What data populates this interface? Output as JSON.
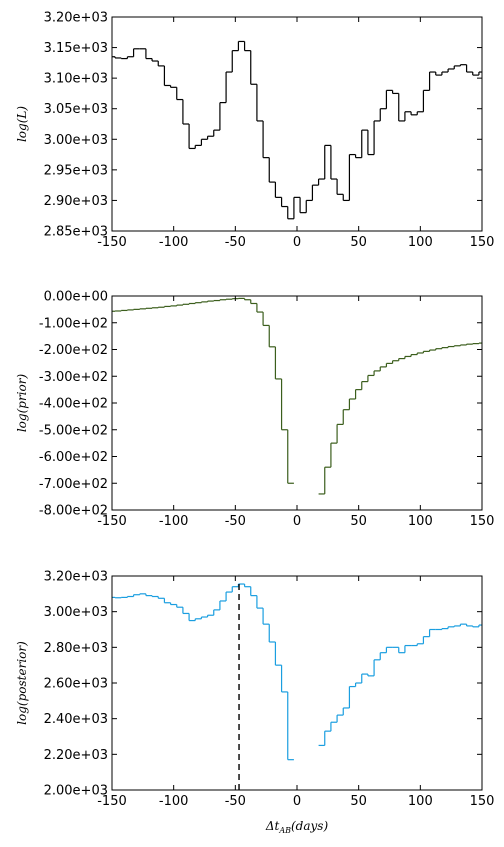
{
  "chart_data": [
    {
      "type": "line",
      "ylabel": "log(L)",
      "x": [
        -150,
        -145,
        -140,
        -135,
        -130,
        -125,
        -120,
        -115,
        -110,
        -105,
        -100,
        -95,
        -90,
        -85,
        -80,
        -75,
        -70,
        -65,
        -60,
        -55,
        -50,
        -45,
        -40,
        -35,
        -30,
        -25,
        -20,
        -15,
        -10,
        -5,
        0,
        5,
        10,
        15,
        20,
        25,
        30,
        35,
        40,
        45,
        50,
        55,
        60,
        65,
        70,
        75,
        80,
        85,
        90,
        95,
        100,
        105,
        110,
        115,
        120,
        125,
        130,
        135,
        140,
        145,
        150
      ],
      "series": [
        {
          "color": "#000000",
          "values": [
            3135,
            3133,
            3132,
            3135,
            3148,
            3148,
            3132,
            3128,
            3120,
            3088,
            3085,
            3065,
            3025,
            2985,
            2990,
            3000,
            3005,
            3015,
            3060,
            3110,
            3145,
            3160,
            3145,
            3090,
            3030,
            2970,
            2930,
            2905,
            2890,
            2870,
            2905,
            2880,
            2900,
            2925,
            2935,
            2990,
            2935,
            2910,
            2900,
            2975,
            2970,
            3015,
            2975,
            3030,
            3050,
            3080,
            3075,
            3030,
            3045,
            3040,
            3045,
            3080,
            3110,
            3105,
            3110,
            3115,
            3120,
            3122,
            3110,
            3105,
            3110
          ]
        }
      ],
      "xlim": [
        -150,
        150
      ],
      "xticks": [
        -150,
        -100,
        -50,
        0,
        50,
        100,
        150
      ],
      "ylim": [
        2850,
        3200
      ],
      "yticks": [
        {
          "value": 2850,
          "label": "2.85e+03"
        },
        {
          "value": 2900,
          "label": "2.90e+03"
        },
        {
          "value": 2950,
          "label": "2.95e+03"
        },
        {
          "value": 3000,
          "label": "3.00e+03"
        },
        {
          "value": 3050,
          "label": "3.05e+03"
        },
        {
          "value": 3100,
          "label": "3.10e+03"
        },
        {
          "value": 3150,
          "label": "3.15e+03"
        },
        {
          "value": 3200,
          "label": "3.20e+03"
        }
      ]
    },
    {
      "type": "line",
      "ylabel": "log(prior)",
      "x": [
        -150,
        -145,
        -140,
        -135,
        -130,
        -125,
        -120,
        -115,
        -110,
        -105,
        -100,
        -95,
        -90,
        -85,
        -80,
        -75,
        -70,
        -65,
        -60,
        -55,
        -50,
        -45,
        -40,
        -35,
        -30,
        -25,
        -20,
        -15,
        -10,
        -5,
        0,
        5,
        10,
        15,
        20,
        25,
        30,
        35,
        40,
        45,
        50,
        55,
        60,
        65,
        70,
        75,
        80,
        85,
        90,
        95,
        100,
        105,
        110,
        115,
        120,
        125,
        130,
        135,
        140,
        145,
        150
      ],
      "series": [
        {
          "color": "#3b5e1c",
          "values": [
            -57,
            -56,
            -54,
            -52,
            -50,
            -48,
            -46,
            -44,
            -42,
            -39,
            -37,
            -34,
            -31,
            -28,
            -25,
            -22,
            -19,
            -17,
            -14,
            -12,
            -10,
            -9,
            -14,
            -28,
            -60,
            -110,
            -190,
            -310,
            -500,
            -700,
            null,
            null,
            null,
            null,
            -740,
            -640,
            -550,
            -480,
            -425,
            -385,
            -350,
            -320,
            -297,
            -280,
            -265,
            -252,
            -242,
            -234,
            -226,
            -219,
            -213,
            -207,
            -202,
            -197,
            -193,
            -189,
            -186,
            -183,
            -180,
            -178,
            -176
          ]
        }
      ],
      "xlim": [
        -150,
        150
      ],
      "xticks": [
        -150,
        -100,
        -50,
        0,
        50,
        100,
        150
      ],
      "ylim": [
        -800,
        0
      ],
      "yticks": [
        {
          "value": -800,
          "label": "-8.00e+02"
        },
        {
          "value": -700,
          "label": "-7.00e+02"
        },
        {
          "value": -600,
          "label": "-6.00e+02"
        },
        {
          "value": -500,
          "label": "-5.00e+02"
        },
        {
          "value": -400,
          "label": "-4.00e+02"
        },
        {
          "value": -300,
          "label": "-3.00e+02"
        },
        {
          "value": -200,
          "label": "-2.00e+02"
        },
        {
          "value": -100,
          "label": "-1.00e+02"
        },
        {
          "value": 0,
          "label": "0.00e+00"
        }
      ]
    },
    {
      "type": "line",
      "ylabel": "log(posterior)",
      "xlabel": {
        "main": "Δt",
        "sub": "AB",
        "rest": "(days)"
      },
      "x": [
        -150,
        -145,
        -140,
        -135,
        -130,
        -125,
        -120,
        -115,
        -110,
        -105,
        -100,
        -95,
        -90,
        -85,
        -80,
        -75,
        -70,
        -65,
        -60,
        -55,
        -50,
        -45,
        -40,
        -35,
        -30,
        -25,
        -20,
        -15,
        -10,
        -5,
        0,
        5,
        10,
        15,
        20,
        25,
        30,
        35,
        40,
        45,
        50,
        55,
        60,
        65,
        70,
        75,
        80,
        85,
        90,
        95,
        100,
        105,
        110,
        115,
        120,
        125,
        130,
        135,
        140,
        145,
        150
      ],
      "series": [
        {
          "color": "#1a9ee0",
          "values": [
            3080,
            3078,
            3080,
            3085,
            3095,
            3100,
            3090,
            3085,
            3075,
            3050,
            3040,
            3025,
            2990,
            2950,
            2960,
            2970,
            2980,
            3010,
            3060,
            3110,
            3140,
            3155,
            3140,
            3090,
            3020,
            2930,
            2830,
            2700,
            2550,
            2170,
            null,
            null,
            null,
            null,
            2250,
            2330,
            2380,
            2420,
            2460,
            2580,
            2600,
            2650,
            2640,
            2730,
            2770,
            2800,
            2800,
            2770,
            2810,
            2810,
            2820,
            2860,
            2900,
            2900,
            2905,
            2915,
            2920,
            2930,
            2920,
            2915,
            2925
          ]
        }
      ],
      "vline": {
        "x": -47,
        "y": 3155
      },
      "xlim": [
        -150,
        150
      ],
      "xticks": [
        -150,
        -100,
        -50,
        0,
        50,
        100,
        150
      ],
      "ylim": [
        2000,
        3200
      ],
      "yticks": [
        {
          "value": 2000,
          "label": "2.00e+03"
        },
        {
          "value": 2200,
          "label": "2.20e+03"
        },
        {
          "value": 2400,
          "label": "2.40e+03"
        },
        {
          "value": 2600,
          "label": "2.60e+03"
        },
        {
          "value": 2800,
          "label": "2.80e+03"
        },
        {
          "value": 3000,
          "label": "3.00e+03"
        },
        {
          "value": 3200,
          "label": "3.20e+03"
        }
      ]
    }
  ]
}
